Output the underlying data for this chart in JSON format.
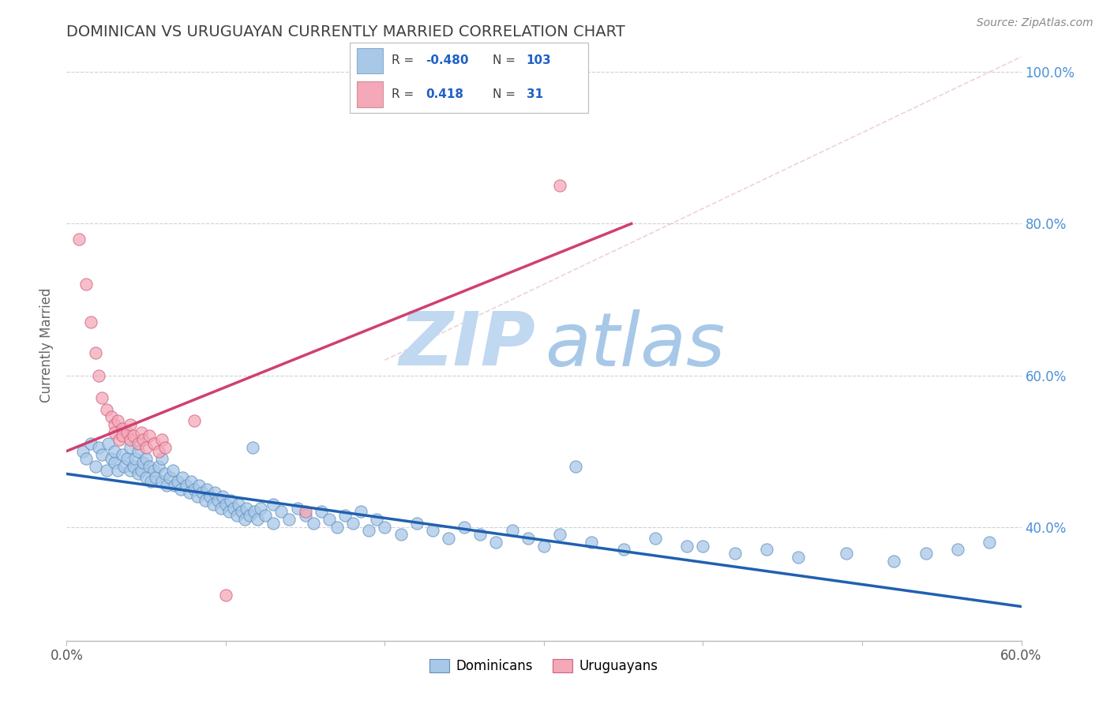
{
  "title": "DOMINICAN VS URUGUAYAN CURRENTLY MARRIED CORRELATION CHART",
  "source": "Source: ZipAtlas.com",
  "ylabel": "Currently Married",
  "xlim": [
    0.0,
    0.6
  ],
  "ylim": [
    0.25,
    1.03
  ],
  "xtick_positions": [
    0.0,
    0.1,
    0.2,
    0.3,
    0.4,
    0.5,
    0.6
  ],
  "xticklabels": [
    "0.0%",
    "",
    "",
    "",
    "",
    "",
    "60.0%"
  ],
  "ytick_positions": [
    0.4,
    0.6,
    0.8,
    1.0
  ],
  "yticklabels": [
    "40.0%",
    "60.0%",
    "80.0%",
    "100.0%"
  ],
  "grid_yticks": [
    0.4,
    0.6,
    0.8,
    1.0
  ],
  "blue_color": "#A8C8E8",
  "pink_color": "#F4A8B8",
  "blue_line_color": "#2060B0",
  "pink_line_color": "#D04070",
  "ref_line_color": "#CCCCCC",
  "grid_color": "#CCCCCC",
  "title_color": "#404040",
  "legend_r_color": "#404040",
  "legend_val_color": "#2060C8",
  "legend_n_color": "#404040",
  "watermark_zip_color": "#C0D8F0",
  "watermark_atlas_color": "#A8C8E8",
  "blue_line_x": [
    0.0,
    0.6
  ],
  "blue_line_y": [
    0.47,
    0.295
  ],
  "pink_line_x": [
    0.0,
    0.355
  ],
  "pink_line_y": [
    0.5,
    0.8
  ],
  "ref_line_x": [
    0.2,
    0.6
  ],
  "ref_line_y": [
    0.62,
    1.02
  ],
  "blue_dots": [
    [
      0.01,
      0.5
    ],
    [
      0.012,
      0.49
    ],
    [
      0.015,
      0.51
    ],
    [
      0.018,
      0.48
    ],
    [
      0.02,
      0.505
    ],
    [
      0.022,
      0.495
    ],
    [
      0.025,
      0.475
    ],
    [
      0.026,
      0.51
    ],
    [
      0.028,
      0.49
    ],
    [
      0.03,
      0.485
    ],
    [
      0.03,
      0.5
    ],
    [
      0.032,
      0.475
    ],
    [
      0.035,
      0.495
    ],
    [
      0.036,
      0.48
    ],
    [
      0.038,
      0.49
    ],
    [
      0.04,
      0.475
    ],
    [
      0.04,
      0.505
    ],
    [
      0.042,
      0.48
    ],
    [
      0.043,
      0.49
    ],
    [
      0.045,
      0.47
    ],
    [
      0.045,
      0.5
    ],
    [
      0.047,
      0.475
    ],
    [
      0.048,
      0.485
    ],
    [
      0.05,
      0.465
    ],
    [
      0.05,
      0.49
    ],
    [
      0.052,
      0.48
    ],
    [
      0.053,
      0.46
    ],
    [
      0.055,
      0.475
    ],
    [
      0.056,
      0.465
    ],
    [
      0.058,
      0.48
    ],
    [
      0.06,
      0.46
    ],
    [
      0.06,
      0.49
    ],
    [
      0.062,
      0.47
    ],
    [
      0.063,
      0.455
    ],
    [
      0.065,
      0.465
    ],
    [
      0.067,
      0.475
    ],
    [
      0.068,
      0.455
    ],
    [
      0.07,
      0.46
    ],
    [
      0.072,
      0.45
    ],
    [
      0.073,
      0.465
    ],
    [
      0.075,
      0.455
    ],
    [
      0.077,
      0.445
    ],
    [
      0.078,
      0.46
    ],
    [
      0.08,
      0.45
    ],
    [
      0.082,
      0.44
    ],
    [
      0.083,
      0.455
    ],
    [
      0.085,
      0.445
    ],
    [
      0.087,
      0.435
    ],
    [
      0.088,
      0.45
    ],
    [
      0.09,
      0.44
    ],
    [
      0.092,
      0.43
    ],
    [
      0.093,
      0.445
    ],
    [
      0.095,
      0.435
    ],
    [
      0.097,
      0.425
    ],
    [
      0.098,
      0.44
    ],
    [
      0.1,
      0.43
    ],
    [
      0.102,
      0.42
    ],
    [
      0.103,
      0.435
    ],
    [
      0.105,
      0.425
    ],
    [
      0.107,
      0.415
    ],
    [
      0.108,
      0.43
    ],
    [
      0.11,
      0.42
    ],
    [
      0.112,
      0.41
    ],
    [
      0.113,
      0.425
    ],
    [
      0.115,
      0.415
    ],
    [
      0.117,
      0.505
    ],
    [
      0.118,
      0.42
    ],
    [
      0.12,
      0.41
    ],
    [
      0.122,
      0.425
    ],
    [
      0.125,
      0.415
    ],
    [
      0.13,
      0.405
    ],
    [
      0.13,
      0.43
    ],
    [
      0.135,
      0.42
    ],
    [
      0.14,
      0.41
    ],
    [
      0.145,
      0.425
    ],
    [
      0.15,
      0.415
    ],
    [
      0.155,
      0.405
    ],
    [
      0.16,
      0.42
    ],
    [
      0.165,
      0.41
    ],
    [
      0.17,
      0.4
    ],
    [
      0.175,
      0.415
    ],
    [
      0.18,
      0.405
    ],
    [
      0.185,
      0.42
    ],
    [
      0.19,
      0.395
    ],
    [
      0.195,
      0.41
    ],
    [
      0.2,
      0.4
    ],
    [
      0.21,
      0.39
    ],
    [
      0.22,
      0.405
    ],
    [
      0.23,
      0.395
    ],
    [
      0.24,
      0.385
    ],
    [
      0.25,
      0.4
    ],
    [
      0.26,
      0.39
    ],
    [
      0.27,
      0.38
    ],
    [
      0.28,
      0.395
    ],
    [
      0.29,
      0.385
    ],
    [
      0.3,
      0.375
    ],
    [
      0.31,
      0.39
    ],
    [
      0.32,
      0.48
    ],
    [
      0.33,
      0.38
    ],
    [
      0.35,
      0.37
    ],
    [
      0.37,
      0.385
    ],
    [
      0.39,
      0.375
    ],
    [
      0.4,
      0.375
    ],
    [
      0.42,
      0.365
    ],
    [
      0.44,
      0.37
    ],
    [
      0.46,
      0.36
    ],
    [
      0.49,
      0.365
    ],
    [
      0.52,
      0.355
    ],
    [
      0.54,
      0.365
    ],
    [
      0.56,
      0.37
    ],
    [
      0.58,
      0.38
    ]
  ],
  "pink_dots": [
    [
      0.008,
      0.78
    ],
    [
      0.012,
      0.72
    ],
    [
      0.015,
      0.67
    ],
    [
      0.018,
      0.63
    ],
    [
      0.02,
      0.6
    ],
    [
      0.022,
      0.57
    ],
    [
      0.025,
      0.555
    ],
    [
      0.028,
      0.545
    ],
    [
      0.03,
      0.535
    ],
    [
      0.03,
      0.525
    ],
    [
      0.032,
      0.54
    ],
    [
      0.033,
      0.515
    ],
    [
      0.035,
      0.53
    ],
    [
      0.035,
      0.52
    ],
    [
      0.038,
      0.525
    ],
    [
      0.04,
      0.515
    ],
    [
      0.04,
      0.535
    ],
    [
      0.042,
      0.52
    ],
    [
      0.045,
      0.51
    ],
    [
      0.047,
      0.525
    ],
    [
      0.048,
      0.515
    ],
    [
      0.05,
      0.505
    ],
    [
      0.052,
      0.52
    ],
    [
      0.055,
      0.51
    ],
    [
      0.058,
      0.5
    ],
    [
      0.06,
      0.515
    ],
    [
      0.062,
      0.505
    ],
    [
      0.08,
      0.54
    ],
    [
      0.1,
      0.31
    ],
    [
      0.15,
      0.42
    ],
    [
      0.31,
      0.85
    ]
  ]
}
